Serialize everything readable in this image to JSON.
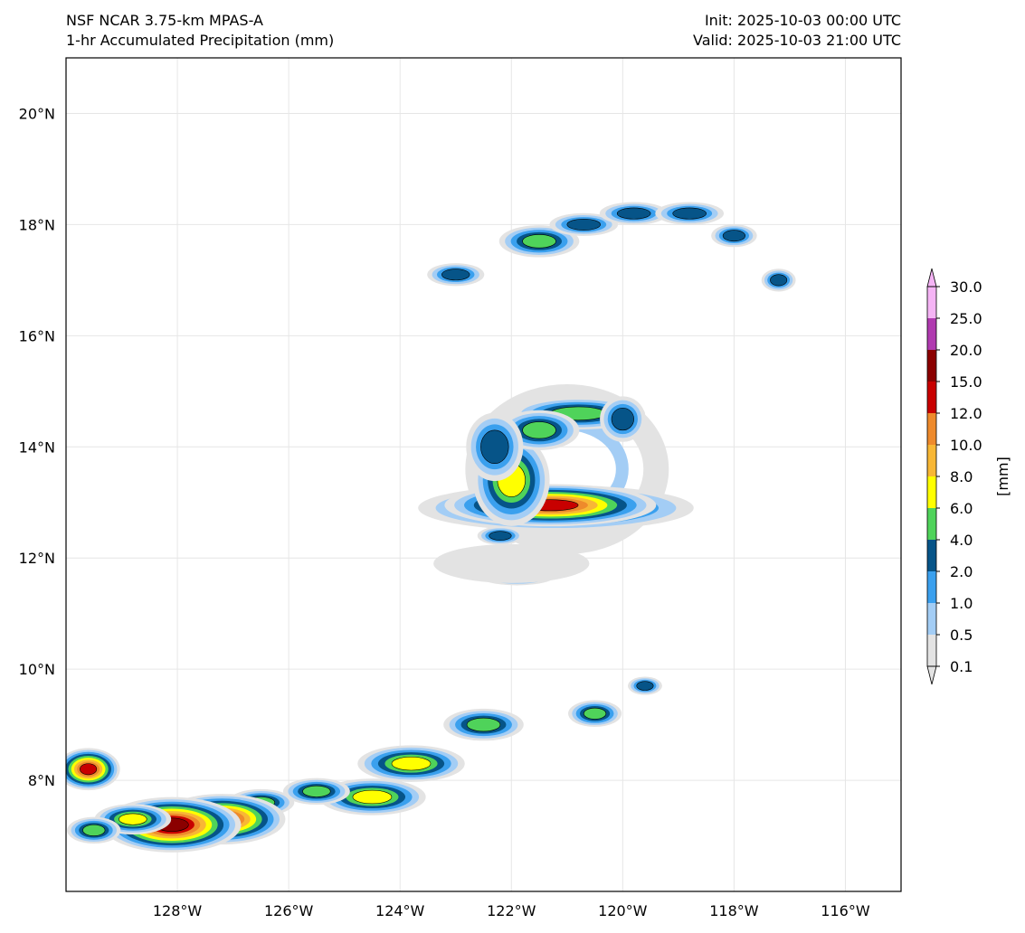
{
  "header": {
    "model": "NSF NCAR 3.75-km MPAS-A",
    "field": "1-hr Accumulated Precipitation (mm)",
    "init": "Init: 2025-10-03 00:00 UTC",
    "valid": "Valid: 2025-10-03 21:00 UTC"
  },
  "map": {
    "lon_range": [
      -130.0,
      -115.0
    ],
    "lat_range": [
      6.0,
      21.0
    ],
    "gridlines": true,
    "lat_ticks": [
      {
        "value": 8,
        "label": "8°N"
      },
      {
        "value": 10,
        "label": "10°N"
      },
      {
        "value": 12,
        "label": "12°N"
      },
      {
        "value": 14,
        "label": "14°N"
      },
      {
        "value": 16,
        "label": "16°N"
      },
      {
        "value": 18,
        "label": "18°N"
      },
      {
        "value": 20,
        "label": "20°N"
      }
    ],
    "lon_ticks": [
      {
        "value": -128,
        "label": "128°W"
      },
      {
        "value": -126,
        "label": "126°W"
      },
      {
        "value": -124,
        "label": "124°W"
      },
      {
        "value": -122,
        "label": "122°W"
      },
      {
        "value": -120,
        "label": "120°W"
      },
      {
        "value": -118,
        "label": "118°W"
      },
      {
        "value": -116,
        "label": "116°W"
      }
    ]
  },
  "colorbar": {
    "label": "[mm]",
    "levels": [
      "0.1",
      "0.5",
      "1.0",
      "2.0",
      "4.0",
      "6.0",
      "8.0",
      "10.0",
      "12.0",
      "15.0",
      "20.0",
      "25.0",
      "30.0"
    ],
    "colors": [
      "#e3e3e3",
      "#a3cdf5",
      "#3aa0ee",
      "#065488",
      "#4fd35a",
      "#ffff00",
      "#f8b735",
      "#ee8a2c",
      "#c80000",
      "#8b0000",
      "#b03ab0",
      "#f5b4f5"
    ],
    "extend": "both"
  },
  "precip_features": [
    {
      "lon": -121.0,
      "lat": 13.6,
      "rx": 1.6,
      "ry": 1.3,
      "level": 1,
      "ring": true
    },
    {
      "lon": -121.2,
      "lat": 12.9,
      "rx": 0.9,
      "ry": 0.15,
      "level": 5
    },
    {
      "lon": -121.3,
      "lat": 12.95,
      "rx": 0.5,
      "ry": 0.1,
      "level": 8
    },
    {
      "lon": -122.0,
      "lat": 13.4,
      "rx": 0.25,
      "ry": 0.3,
      "level": 5
    },
    {
      "lon": -120.8,
      "lat": 14.6,
      "rx": 0.5,
      "ry": 0.12,
      "level": 4
    },
    {
      "lon": -121.5,
      "lat": 14.3,
      "rx": 0.3,
      "ry": 0.15,
      "level": 4
    },
    {
      "lon": -122.3,
      "lat": 14.0,
      "rx": 0.25,
      "ry": 0.3,
      "level": 3
    },
    {
      "lon": -120.0,
      "lat": 14.5,
      "rx": 0.2,
      "ry": 0.2,
      "level": 3
    },
    {
      "lon": -121.9,
      "lat": 11.7,
      "rx": 0.3,
      "ry": 0.08,
      "level": 4
    },
    {
      "lon": -122.2,
      "lat": 12.4,
      "rx": 0.2,
      "ry": 0.08,
      "level": 3
    },
    {
      "lon": -122.0,
      "lat": 11.9,
      "rx": 1.4,
      "ry": 0.35,
      "level": 0
    },
    {
      "lon": -121.5,
      "lat": 17.7,
      "rx": 0.3,
      "ry": 0.12,
      "level": 4
    },
    {
      "lon": -120.7,
      "lat": 18.0,
      "rx": 0.3,
      "ry": 0.1,
      "level": 3
    },
    {
      "lon": -119.8,
      "lat": 18.2,
      "rx": 0.3,
      "ry": 0.1,
      "level": 3
    },
    {
      "lon": -118.8,
      "lat": 18.2,
      "rx": 0.3,
      "ry": 0.1,
      "level": 3
    },
    {
      "lon": -118.0,
      "lat": 17.8,
      "rx": 0.2,
      "ry": 0.1,
      "level": 3
    },
    {
      "lon": -117.2,
      "lat": 17.0,
      "rx": 0.15,
      "ry": 0.1,
      "level": 3
    },
    {
      "lon": -123.0,
      "lat": 17.1,
      "rx": 0.25,
      "ry": 0.1,
      "level": 3
    },
    {
      "lon": -122.5,
      "lat": 9.0,
      "rx": 0.3,
      "ry": 0.12,
      "level": 4
    },
    {
      "lon": -123.8,
      "lat": 8.3,
      "rx": 0.35,
      "ry": 0.12,
      "level": 5
    },
    {
      "lon": -124.5,
      "lat": 7.7,
      "rx": 0.35,
      "ry": 0.12,
      "level": 5
    },
    {
      "lon": -125.5,
      "lat": 7.8,
      "rx": 0.25,
      "ry": 0.1,
      "level": 4
    },
    {
      "lon": -126.5,
      "lat": 7.6,
      "rx": 0.25,
      "ry": 0.1,
      "level": 4
    },
    {
      "lon": -127.2,
      "lat": 7.3,
      "rx": 0.3,
      "ry": 0.12,
      "level": 8
    },
    {
      "lon": -128.1,
      "lat": 7.2,
      "rx": 0.3,
      "ry": 0.12,
      "level": 9
    },
    {
      "lon": -128.8,
      "lat": 7.3,
      "rx": 0.25,
      "ry": 0.1,
      "level": 5
    },
    {
      "lon": -129.5,
      "lat": 7.1,
      "rx": 0.2,
      "ry": 0.1,
      "level": 4
    },
    {
      "lon": -129.6,
      "lat": 8.2,
      "rx": 0.15,
      "ry": 0.1,
      "level": 8
    },
    {
      "lon": -120.5,
      "lat": 9.2,
      "rx": 0.2,
      "ry": 0.1,
      "level": 4
    },
    {
      "lon": -119.6,
      "lat": 9.7,
      "rx": 0.15,
      "ry": 0.08,
      "level": 3
    }
  ]
}
